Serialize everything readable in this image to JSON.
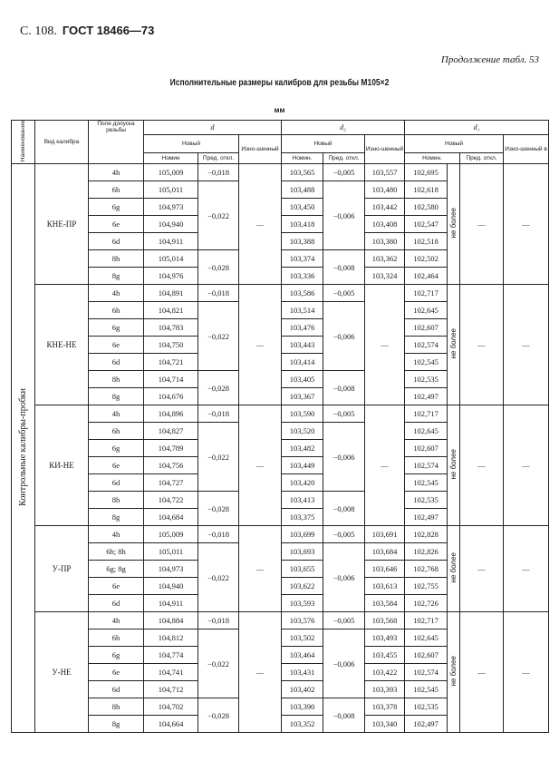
{
  "page_header": {
    "page": "С. 108.",
    "standard": "ГОСТ 18466—73"
  },
  "continuation": "Продолжение табл. 53",
  "title": "Исполнительные размеры калибров для резьбы М105×2",
  "unit": "мм",
  "headers": {
    "name": "Наименование",
    "type": "Вид калибра",
    "field": "Поле допуска резьбы",
    "d": "d",
    "d2": "d₂",
    "d1": "d₁",
    "new": "Новый",
    "worn": "Изно-шенный",
    "nom_d": "Номин",
    "nom": "Номин.",
    "dev": "Пред. откл.",
    "worn_note": "в"
  },
  "category": "Контрольные калибры-пробки",
  "not_more": "не более",
  "dash": "—",
  "groups": [
    {
      "name": "КНЕ-ПР",
      "rows": [
        {
          "field": "4h",
          "d": "105,009",
          "d2": "103,565",
          "d2w": "103,557",
          "d1": "102,695"
        },
        {
          "field": "6h",
          "d": "105,011",
          "d2": "103,488",
          "d2w": "103,480",
          "d1": "102,618"
        },
        {
          "field": "6g",
          "d": "104,973",
          "d2": "103,450",
          "d2w": "103,442",
          "d1": "102,580"
        },
        {
          "field": "6e",
          "d": "104,940",
          "d2": "103,418",
          "d2w": "103,408",
          "d1": "102,547"
        },
        {
          "field": "6d",
          "d": "104,911",
          "d2": "103,388",
          "d2w": "103,380",
          "d1": "102,518"
        },
        {
          "field": "8h",
          "d": "105,014",
          "d2": "103,374",
          "d2w": "103,362",
          "d1": "102,502"
        },
        {
          "field": "8g",
          "d": "104,976",
          "d2": "103,336",
          "d2w": "103,324",
          "d1": "102,464"
        }
      ],
      "d_dev": [
        {
          "v": "−0,018",
          "n": 1
        },
        {
          "v": "−0,022",
          "n": 4
        },
        {
          "v": "−0,028",
          "n": 2
        }
      ],
      "d2_dev": [
        {
          "v": "−0,005",
          "n": 1
        },
        {
          "v": "−0,006",
          "n": 4
        },
        {
          "v": "−0,008",
          "n": 2
        }
      ]
    },
    {
      "name": "КНЕ-НЕ",
      "rows": [
        {
          "field": "4h",
          "d": "104,891",
          "d2": "103,586",
          "d1": "102,717"
        },
        {
          "field": "6h",
          "d": "104,821",
          "d2": "103,514",
          "d1": "102,645"
        },
        {
          "field": "6g",
          "d": "104,783",
          "d2": "103,476",
          "d1": "102,607"
        },
        {
          "field": "6e",
          "d": "104,750",
          "d2": "103,443",
          "d1": "102,574"
        },
        {
          "field": "6d",
          "d": "104,721",
          "d2": "103,414",
          "d1": "102,545"
        },
        {
          "field": "8h",
          "d": "104,714",
          "d2": "103,405",
          "d1": "102,535"
        },
        {
          "field": "8g",
          "d": "104,676",
          "d2": "103,367",
          "d1": "102,497"
        }
      ],
      "d_dev": [
        {
          "v": "−0,018",
          "n": 1
        },
        {
          "v": "−0,022",
          "n": 4
        },
        {
          "v": "−0,028",
          "n": 2
        }
      ],
      "d2_dev": [
        {
          "v": "−0,005",
          "n": 1
        },
        {
          "v": "−0,006",
          "n": 4
        },
        {
          "v": "−0,008",
          "n": 2
        }
      ]
    },
    {
      "name": "КИ-НЕ",
      "rows": [
        {
          "field": "4h",
          "d": "104,896",
          "d2": "103,590",
          "d1": "102,717"
        },
        {
          "field": "6h",
          "d": "104,827",
          "d2": "103,520",
          "d1": "102,645"
        },
        {
          "field": "6g",
          "d": "104,789",
          "d2": "103,482",
          "d1": "102,607"
        },
        {
          "field": "6e",
          "d": "104,756",
          "d2": "103,449",
          "d1": "102,574"
        },
        {
          "field": "6d",
          "d": "104,727",
          "d2": "103,420",
          "d1": "102,545"
        },
        {
          "field": "8h",
          "d": "104,722",
          "d2": "103,413",
          "d1": "102,535"
        },
        {
          "field": "8g",
          "d": "104,684",
          "d2": "103,375",
          "d1": "102,497"
        }
      ],
      "d_dev": [
        {
          "v": "−0,018",
          "n": 1
        },
        {
          "v": "−0,022",
          "n": 4
        },
        {
          "v": "−0,028",
          "n": 2
        }
      ],
      "d2_dev": [
        {
          "v": "−0,005",
          "n": 1
        },
        {
          "v": "−0,006",
          "n": 4
        },
        {
          "v": "−0,008",
          "n": 2
        }
      ]
    },
    {
      "name": "У-ПР",
      "rows": [
        {
          "field": "4h",
          "d": "105,009",
          "d2": "103,699",
          "d2w": "103,691",
          "d1": "102,828"
        },
        {
          "field": "6h; 8h",
          "d": "105,011",
          "d2": "103,693",
          "d2w": "103,684",
          "d1": "102,826"
        },
        {
          "field": "6g; 8g",
          "d": "104,973",
          "d2": "103,655",
          "d2w": "103,646",
          "d1": "102,768"
        },
        {
          "field": "6e",
          "d": "104,940",
          "d2": "103,622",
          "d2w": "103,613",
          "d1": "102,755"
        },
        {
          "field": "6d",
          "d": "104,911",
          "d2": "103,593",
          "d2w": "103,584",
          "d1": "102,726"
        }
      ],
      "d_dev": [
        {
          "v": "−0,018",
          "n": 1
        },
        {
          "v": "−0,022",
          "n": 4
        }
      ],
      "d2_dev": [
        {
          "v": "−0,005",
          "n": 1
        },
        {
          "v": "−0,006",
          "n": 4
        }
      ]
    },
    {
      "name": "У-НЕ",
      "rows": [
        {
          "field": "4h",
          "d": "104,884",
          "d2": "103,576",
          "d2w": "103,568",
          "d1": "102,717"
        },
        {
          "field": "6h",
          "d": "104,812",
          "d2": "103,502",
          "d2w": "103,493",
          "d1": "102,645"
        },
        {
          "field": "6g",
          "d": "104,774",
          "d2": "103,464",
          "d2w": "103,455",
          "d1": "102,607"
        },
        {
          "field": "6e",
          "d": "104,741",
          "d2": "103,431",
          "d2w": "103,422",
          "d1": "102,574"
        },
        {
          "field": "6d",
          "d": "104,712",
          "d2": "103,402",
          "d2w": "103,393",
          "d1": "102,545"
        },
        {
          "field": "8h",
          "d": "104,702",
          "d2": "103,390",
          "d2w": "103,378",
          "d1": "102,535"
        },
        {
          "field": "8g",
          "d": "104,664",
          "d2": "103,352",
          "d2w": "103,340",
          "d1": "102,497"
        }
      ],
      "d_dev": [
        {
          "v": "−0,018",
          "n": 1
        },
        {
          "v": "−0,022",
          "n": 4
        },
        {
          "v": "−0,028",
          "n": 2
        }
      ],
      "d2_dev": [
        {
          "v": "−0,005",
          "n": 1
        },
        {
          "v": "−0,006",
          "n": 4
        },
        {
          "v": "−0,008",
          "n": 2
        }
      ]
    }
  ]
}
